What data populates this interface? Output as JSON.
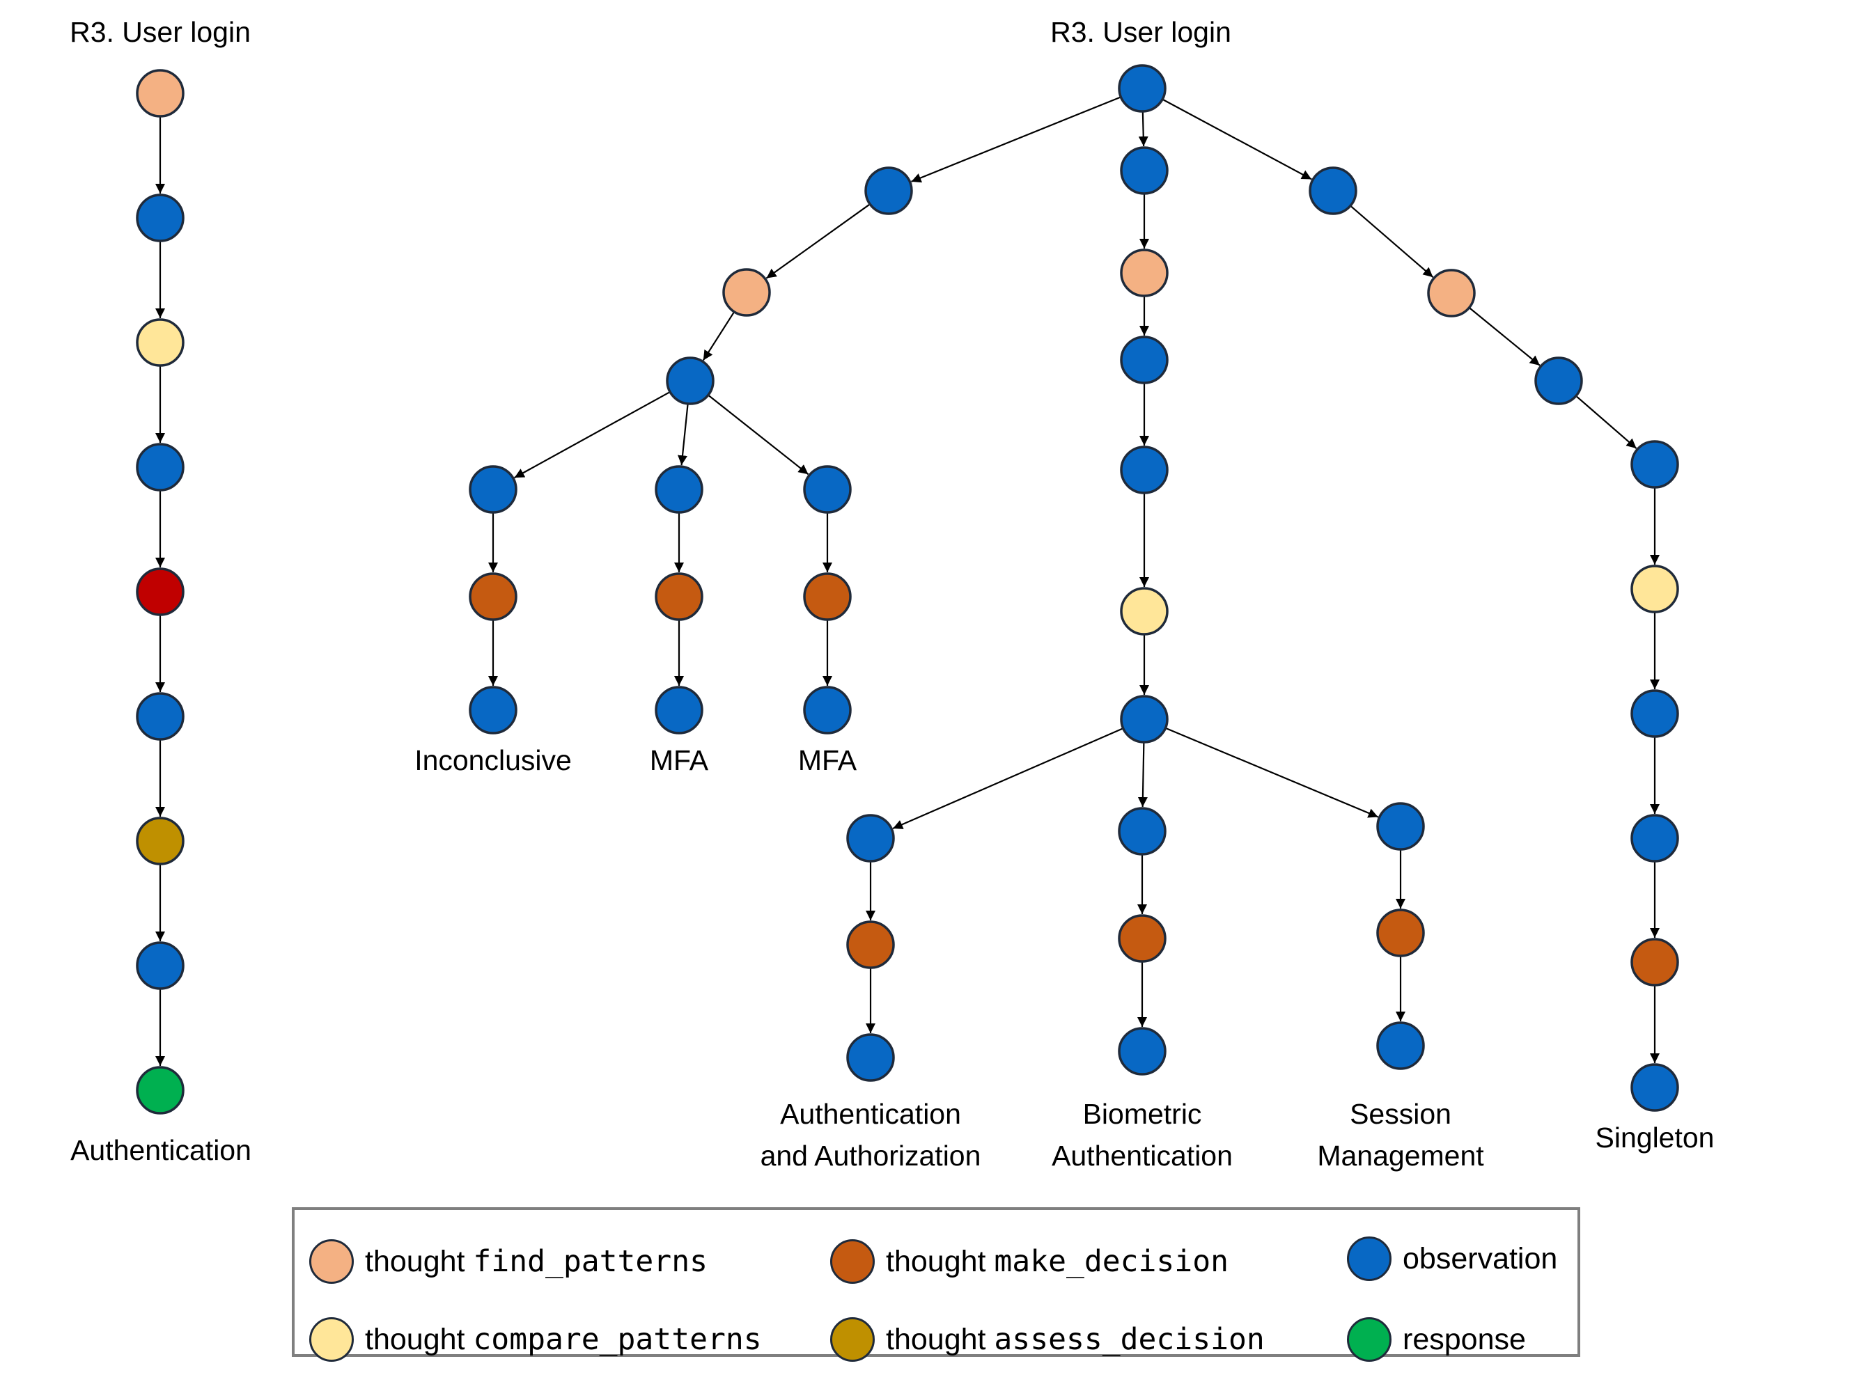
{
  "colors": {
    "observation": "#0868c4",
    "find_patterns": "#f4b183",
    "compare_patterns": "#ffe699",
    "make_decision": "#c55a11",
    "assess_decision": "#bf9000",
    "red": "#c00000",
    "response": "#00b050",
    "node_border": "#1f2a3a",
    "edge": "#000000"
  },
  "titles": {
    "left": "R3. User login",
    "right": "R3. User login"
  },
  "leaf_labels": {
    "left": "Authentication",
    "inconclusive": "Inconclusive",
    "mfa_1": "MFA",
    "mfa_2": "MFA",
    "auth_authz_line1": "Authentication",
    "auth_authz_line2": "and Authorization",
    "biometric_line1": "Biometric",
    "biometric_line2": "Authentication",
    "session_line1": "Session",
    "session_line2": "Management",
    "singleton": "Singleton"
  },
  "legend": {
    "find_patterns": {
      "word": "thought",
      "code": "find_patterns"
    },
    "make_decision": {
      "word": "thought",
      "code": "make_decision"
    },
    "observation": {
      "word": "observation"
    },
    "compare_patterns": {
      "word": "thought",
      "code": "compare_patterns"
    },
    "assess_decision": {
      "word": "thought",
      "code": "assess_decision"
    },
    "response": {
      "word": "response"
    }
  },
  "graph": {
    "nodes": [
      {
        "id": "L1",
        "type": "find_patterns"
      },
      {
        "id": "L2",
        "type": "observation"
      },
      {
        "id": "L3",
        "type": "compare_patterns"
      },
      {
        "id": "L4",
        "type": "observation"
      },
      {
        "id": "L5",
        "type": "red"
      },
      {
        "id": "L6",
        "type": "observation"
      },
      {
        "id": "L7",
        "type": "assess_decision"
      },
      {
        "id": "L8",
        "type": "observation"
      },
      {
        "id": "L9",
        "type": "response"
      },
      {
        "id": "R0",
        "type": "observation"
      },
      {
        "id": "A1",
        "type": "observation"
      },
      {
        "id": "A2",
        "type": "find_patterns"
      },
      {
        "id": "A3",
        "type": "observation"
      },
      {
        "id": "A4",
        "type": "observation"
      },
      {
        "id": "A5",
        "type": "make_decision"
      },
      {
        "id": "A6",
        "type": "observation"
      },
      {
        "id": "B4",
        "type": "observation"
      },
      {
        "id": "B5",
        "type": "make_decision"
      },
      {
        "id": "B6",
        "type": "observation"
      },
      {
        "id": "C4",
        "type": "observation"
      },
      {
        "id": "C5",
        "type": "make_decision"
      },
      {
        "id": "C6",
        "type": "observation"
      },
      {
        "id": "M1",
        "type": "observation"
      },
      {
        "id": "M2",
        "type": "find_patterns"
      },
      {
        "id": "M3",
        "type": "observation"
      },
      {
        "id": "M4",
        "type": "observation"
      },
      {
        "id": "M5",
        "type": "compare_patterns"
      },
      {
        "id": "M6",
        "type": "observation"
      },
      {
        "id": "D1",
        "type": "observation"
      },
      {
        "id": "D2",
        "type": "make_decision"
      },
      {
        "id": "D3",
        "type": "observation"
      },
      {
        "id": "E1",
        "type": "observation"
      },
      {
        "id": "E2",
        "type": "make_decision"
      },
      {
        "id": "E3",
        "type": "observation"
      },
      {
        "id": "F1",
        "type": "observation"
      },
      {
        "id": "F2",
        "type": "make_decision"
      },
      {
        "id": "F3",
        "type": "observation"
      },
      {
        "id": "S1",
        "type": "observation"
      },
      {
        "id": "S2",
        "type": "find_patterns"
      },
      {
        "id": "S3",
        "type": "observation"
      },
      {
        "id": "S4",
        "type": "observation"
      },
      {
        "id": "S5",
        "type": "compare_patterns"
      },
      {
        "id": "S6",
        "type": "observation"
      },
      {
        "id": "S7",
        "type": "observation"
      },
      {
        "id": "S8",
        "type": "make_decision"
      },
      {
        "id": "S9",
        "type": "observation"
      }
    ],
    "edges": [
      [
        "L1",
        "L2"
      ],
      [
        "L2",
        "L3"
      ],
      [
        "L3",
        "L4"
      ],
      [
        "L4",
        "L5"
      ],
      [
        "L5",
        "L6"
      ],
      [
        "L6",
        "L7"
      ],
      [
        "L7",
        "L8"
      ],
      [
        "L8",
        "L9"
      ],
      [
        "R0",
        "A1"
      ],
      [
        "R0",
        "M1"
      ],
      [
        "R0",
        "S1"
      ],
      [
        "A1",
        "A2"
      ],
      [
        "A2",
        "A3"
      ],
      [
        "A3",
        "A4"
      ],
      [
        "A3",
        "B4"
      ],
      [
        "A3",
        "C4"
      ],
      [
        "A4",
        "A5"
      ],
      [
        "A5",
        "A6"
      ],
      [
        "B4",
        "B5"
      ],
      [
        "B5",
        "B6"
      ],
      [
        "C4",
        "C5"
      ],
      [
        "C5",
        "C6"
      ],
      [
        "M1",
        "M2"
      ],
      [
        "M2",
        "M3"
      ],
      [
        "M3",
        "M4"
      ],
      [
        "M4",
        "M5"
      ],
      [
        "M5",
        "M6"
      ],
      [
        "M6",
        "D1"
      ],
      [
        "M6",
        "E1"
      ],
      [
        "M6",
        "F1"
      ],
      [
        "D1",
        "D2"
      ],
      [
        "D2",
        "D3"
      ],
      [
        "E1",
        "E2"
      ],
      [
        "E2",
        "E3"
      ],
      [
        "F1",
        "F2"
      ],
      [
        "F2",
        "F3"
      ],
      [
        "S1",
        "S2"
      ],
      [
        "S2",
        "S3"
      ],
      [
        "S3",
        "S4"
      ],
      [
        "S4",
        "S5"
      ],
      [
        "S5",
        "S6"
      ],
      [
        "S6",
        "S7"
      ],
      [
        "S7",
        "S8"
      ],
      [
        "S8",
        "S9"
      ]
    ]
  }
}
